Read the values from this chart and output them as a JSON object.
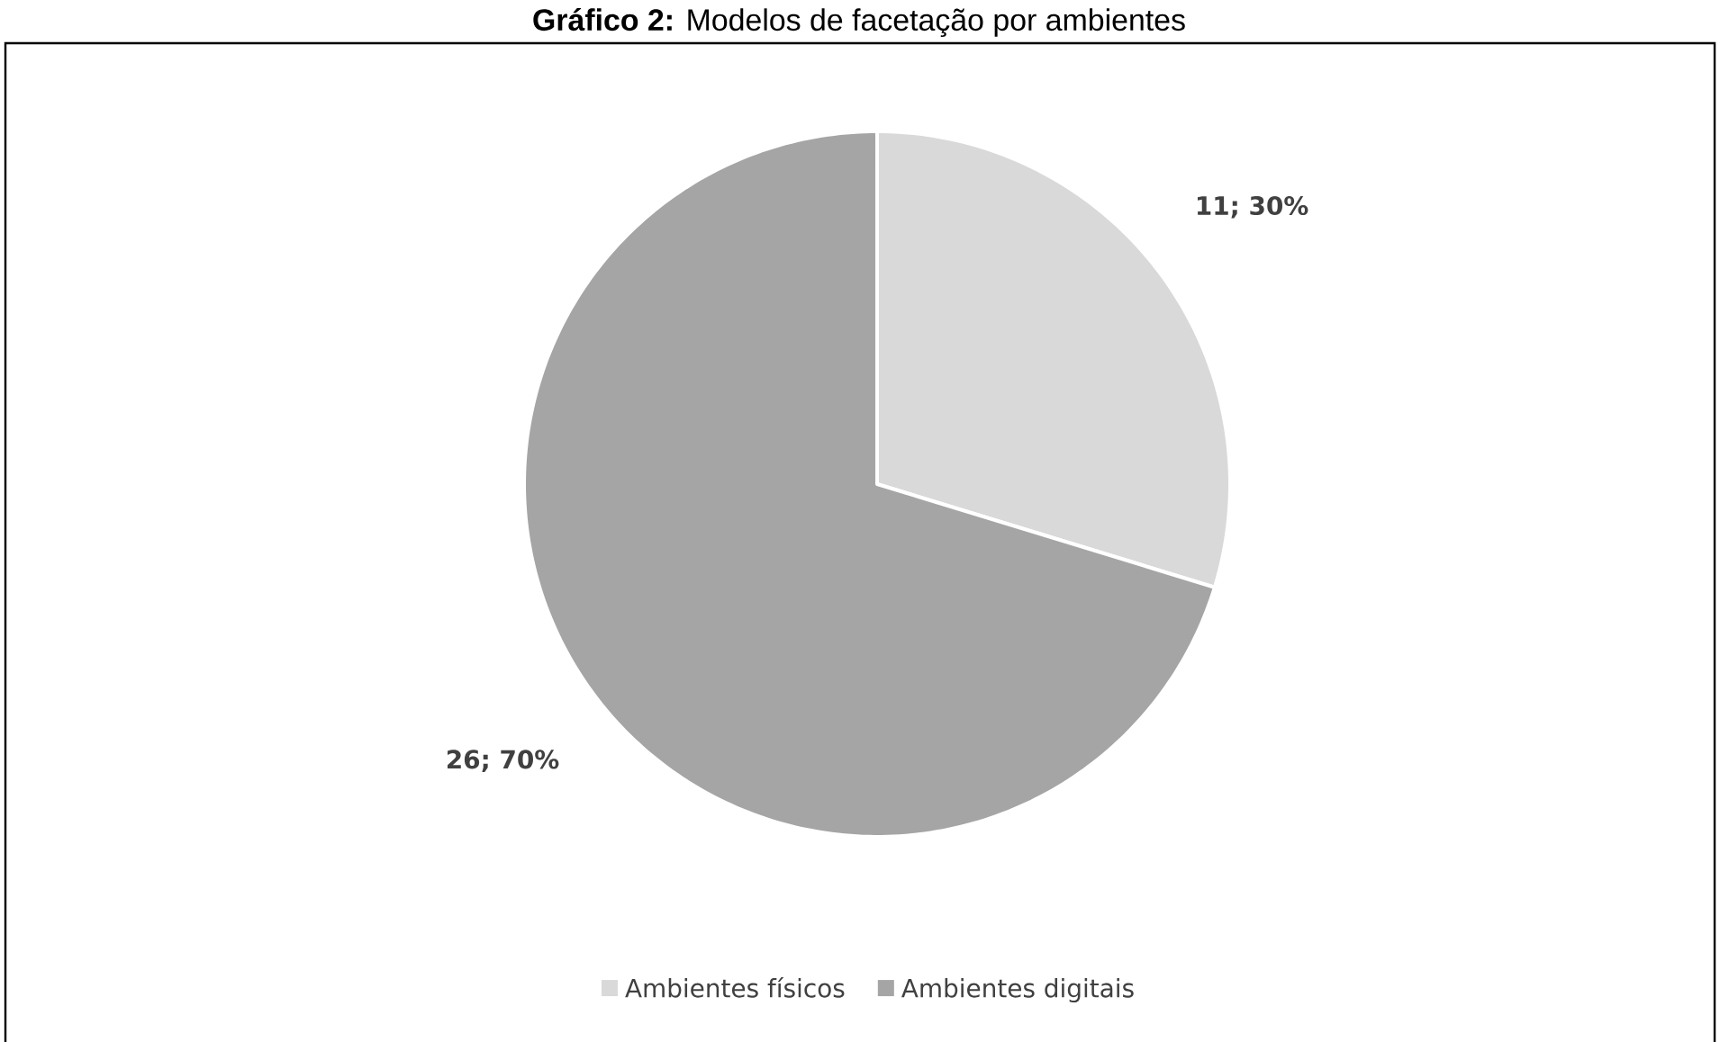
{
  "chart_data": {
    "type": "pie",
    "title": "**Gráfico 2:** Modelos de facetação por ambientes",
    "categories": [
      "Ambientes físicos",
      "Ambientes digitais"
    ],
    "values": [
      11,
      26
    ],
    "colors": [
      "#d9d9d9",
      "#a5a5a5"
    ],
    "value_labels": [
      "11; 30%",
      "26; 70%"
    ],
    "legend": "bottom"
  }
}
